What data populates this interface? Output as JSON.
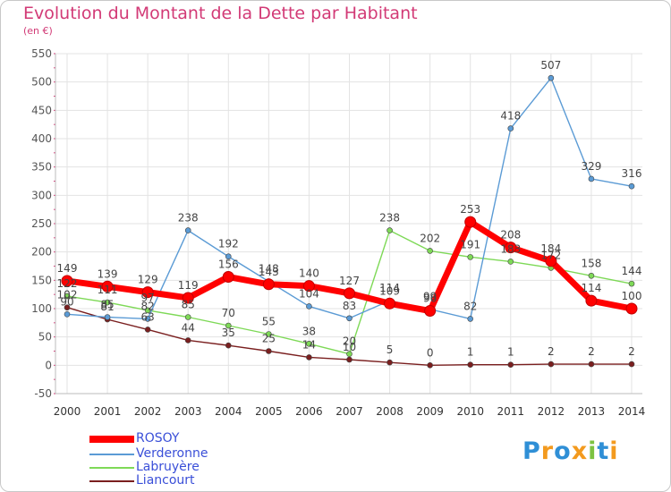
{
  "title": "Evolution du Montant de la Dette par Habitant",
  "unit_label": "(en €)",
  "logo": {
    "text": "Proxiti",
    "letters": [
      {
        "ch": "P",
        "color": "#2f8fd6"
      },
      {
        "ch": "r",
        "color": "#f39a1e"
      },
      {
        "ch": "o",
        "color": "#2f8fd6"
      },
      {
        "ch": "x",
        "color": "#f39a1e"
      },
      {
        "ch": "i",
        "color": "#7cc242"
      },
      {
        "ch": "t",
        "color": "#2f8fd6"
      },
      {
        "ch": "i",
        "color": "#f39a1e"
      }
    ]
  },
  "chart_data": {
    "type": "line",
    "x": [
      "2000",
      "2001",
      "2002",
      "2003",
      "2004",
      "2005",
      "2006",
      "2007",
      "2008",
      "2009",
      "2010",
      "2011",
      "2012",
      "2013",
      "2014"
    ],
    "ylim": [
      -50,
      550
    ],
    "yticks": [
      "-50",
      "0",
      "50",
      "100",
      "150",
      "200",
      "250",
      "300",
      "350",
      "400",
      "450",
      "500",
      "550"
    ],
    "grid": true,
    "legend_position": "bottom-left",
    "series": [
      {
        "name": "ROSOY",
        "color": "#ff0000",
        "labels": [
          "149",
          "139",
          "129",
          "119",
          "156",
          "143",
          "140",
          "127",
          "109",
          "96",
          "253",
          "208",
          "184",
          "114",
          "100"
        ],
        "values": [
          149,
          139,
          129,
          119,
          156,
          143,
          140,
          127,
          109,
          96,
          253,
          208,
          184,
          114,
          100
        ]
      },
      {
        "name": "Verderonne",
        "color": "#5b9bd5",
        "labels": [
          "90",
          "85",
          "82",
          "238",
          "192",
          "148",
          "104",
          "83",
          "114",
          "99",
          "82",
          "418",
          "507",
          "329",
          "316"
        ],
        "values": [
          90,
          85,
          82,
          238,
          192,
          148,
          104,
          83,
          114,
          99,
          82,
          418,
          507,
          329,
          316
        ]
      },
      {
        "name": "Labruyère",
        "color": "#7ed957",
        "labels": [
          "122",
          "111",
          "97",
          "85",
          "70",
          "55",
          "38",
          "20",
          "238",
          "202",
          "191",
          "183",
          "172",
          "158",
          "144"
        ],
        "values": [
          122,
          111,
          97,
          85,
          70,
          55,
          38,
          20,
          238,
          202,
          191,
          183,
          172,
          158,
          144
        ]
      },
      {
        "name": "Liancourt",
        "color": "#7a1f1f",
        "labels": [
          "102",
          "81",
          "63",
          "44",
          "35",
          "25",
          "14",
          "10",
          "5",
          "0",
          "1",
          "1",
          "2",
          "2",
          "2"
        ],
        "values": [
          102,
          81,
          63,
          44,
          35,
          25,
          14,
          10,
          5,
          0,
          1,
          1,
          2,
          2,
          2
        ]
      }
    ]
  }
}
